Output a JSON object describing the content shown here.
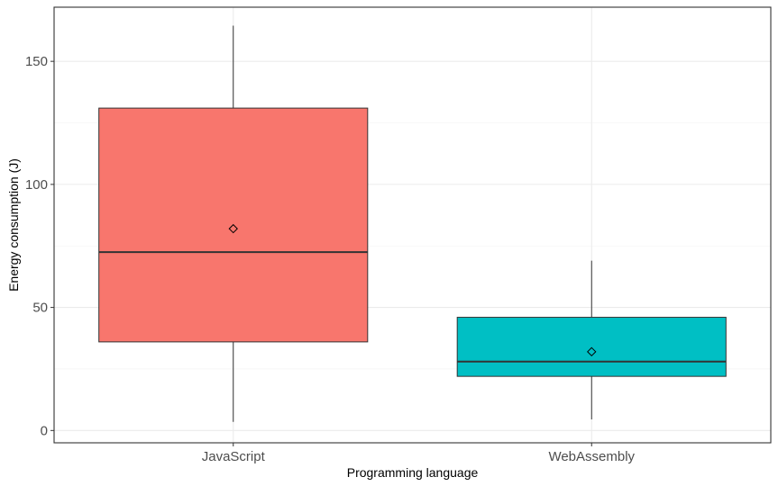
{
  "chart_data": {
    "type": "box",
    "xlabel": "Programming language",
    "ylabel": "Energy consumption (J)",
    "ylim": [
      -5,
      172
    ],
    "yticks": [
      0,
      50,
      100,
      150
    ],
    "grid": true,
    "categories": [
      "JavaScript",
      "WebAssembly"
    ],
    "boxes": [
      {
        "category": "JavaScript",
        "min": 3.5,
        "q1": 36,
        "median": 72.5,
        "q3": 131,
        "max": 164.5,
        "mean": 82,
        "color": "#F8766D"
      },
      {
        "category": "WebAssembly",
        "min": 4.5,
        "q1": 22,
        "median": 28,
        "q3": 46,
        "max": 69,
        "mean": 32,
        "color": "#00BFC4"
      }
    ]
  }
}
